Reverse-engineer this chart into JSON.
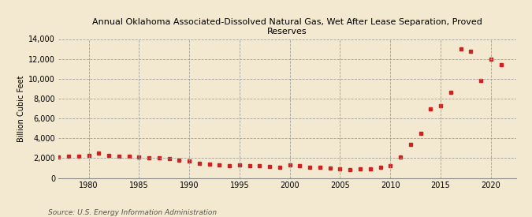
{
  "title": "Annual Oklahoma Associated-Dissolved Natural Gas, Wet After Lease Separation, Proved\nReserves",
  "ylabel": "Billion Cubic Feet",
  "source": "Source: U.S. Energy Information Administration",
  "background_color": "#f3e8d0",
  "plot_bg_color": "#f3e8d0",
  "marker_color": "#cc2222",
  "years": [
    1977,
    1978,
    1979,
    1980,
    1981,
    1982,
    1983,
    1984,
    1985,
    1986,
    1987,
    1988,
    1989,
    1990,
    1991,
    1992,
    1993,
    1994,
    1995,
    1996,
    1997,
    1998,
    1999,
    2000,
    2001,
    2002,
    2003,
    2004,
    2005,
    2006,
    2007,
    2008,
    2009,
    2010,
    2011,
    2012,
    2013,
    2014,
    2015,
    2016,
    2017,
    2018,
    2019,
    2020,
    2021
  ],
  "values": [
    2100,
    2150,
    2200,
    2300,
    2500,
    2300,
    2200,
    2150,
    2100,
    2050,
    2000,
    1950,
    1800,
    1700,
    1500,
    1400,
    1300,
    1250,
    1300,
    1250,
    1200,
    1150,
    1100,
    1300,
    1200,
    1100,
    1050,
    1000,
    900,
    800,
    900,
    950,
    1100,
    1250,
    2100,
    3400,
    4500,
    7000,
    7300,
    8600,
    13000,
    12800,
    9800,
    12000,
    11400
  ],
  "ylim": [
    0,
    14000
  ],
  "yticks": [
    0,
    2000,
    4000,
    6000,
    8000,
    10000,
    12000,
    14000
  ],
  "xlim": [
    1977,
    2022.5
  ],
  "xticks": [
    1980,
    1985,
    1990,
    1995,
    2000,
    2005,
    2010,
    2015,
    2020
  ]
}
